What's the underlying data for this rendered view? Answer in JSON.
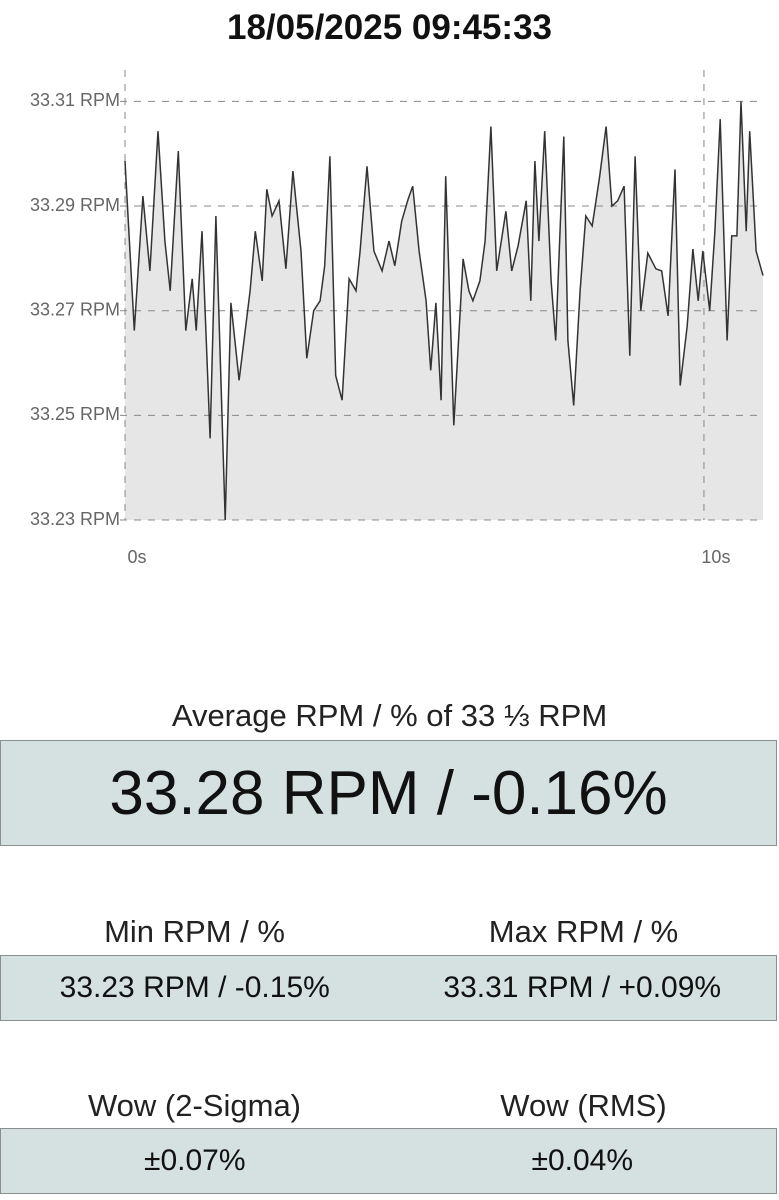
{
  "title": "18/05/2025 09:45:33",
  "chart_data": {
    "type": "area",
    "color": "#333333",
    "fill": "#e6e6e6",
    "grid": true,
    "x": [
      0,
      0.16,
      0.31,
      0.43,
      0.57,
      0.69,
      0.78,
      0.92,
      1.05,
      1.16,
      1.23,
      1.33,
      1.47,
      1.57,
      1.73,
      1.83,
      1.97,
      2.16,
      2.25,
      2.37,
      2.45,
      2.54,
      2.66,
      2.78,
      2.9,
      3.04,
      3.14,
      3.26,
      3.37,
      3.45,
      3.54,
      3.64,
      3.75,
      3.87,
      3.99,
      4.06,
      4.18,
      4.3,
      4.44,
      4.56,
      4.66,
      4.78,
      4.89,
      4.97,
      5.08,
      5.2,
      5.28,
      5.37,
      5.46,
      5.54,
      5.68,
      5.84,
      5.94,
      6.01,
      6.13,
      6.22,
      6.32,
      6.42,
      6.58,
      6.68,
      6.79,
      6.93,
      7.01,
      7.08,
      7.15,
      7.25,
      7.36,
      7.44,
      7.58,
      7.65,
      7.75,
      7.86,
      7.96,
      8.07,
      8.2,
      8.31,
      8.41,
      8.51,
      8.62,
      8.72,
      8.81,
      8.91,
      9.03,
      9.17,
      9.27,
      9.38,
      9.5,
      9.59,
      9.71,
      9.81,
      9.9,
      9.98,
      10.1,
      10.19,
      10.28,
      10.4,
      10.48,
      10.57,
      10.64,
      10.73,
      10.79,
      10.9,
      11.02
    ],
    "values": [
      33.2986,
      33.2662,
      33.2919,
      33.2776,
      33.3043,
      33.2833,
      33.2738,
      33.3005,
      33.2662,
      33.2761,
      33.2662,
      33.2852,
      33.2456,
      33.2881,
      33.23,
      33.2715,
      33.2567,
      33.2738,
      33.2852,
      33.2757,
      33.2932,
      33.2881,
      33.291,
      33.278,
      33.2967,
      33.2814,
      33.2609,
      33.27,
      33.2719,
      33.2786,
      33.2995,
      33.2576,
      33.2529,
      33.2761,
      33.2738,
      33.2814,
      33.2976,
      33.2814,
      33.2776,
      33.2833,
      33.2786,
      33.2871,
      33.2913,
      33.2938,
      33.2814,
      33.2719,
      33.2586,
      33.2715,
      33.2529,
      33.2957,
      33.2481,
      33.2799,
      33.2738,
      33.2719,
      33.2757,
      33.2833,
      33.3052,
      33.2776,
      33.289,
      33.2776,
      33.2824,
      33.291,
      33.2719,
      33.2986,
      33.2833,
      33.3043,
      33.2757,
      33.2643,
      33.3033,
      33.2643,
      33.2519,
      33.2738,
      33.2881,
      33.2862,
      33.2957,
      33.3052,
      33.29,
      33.291,
      33.2938,
      33.2614,
      33.2995,
      33.27,
      33.281,
      33.278,
      33.2776,
      33.269,
      33.297,
      33.2557,
      33.2671,
      33.2818,
      33.2719,
      33.2814,
      33.27,
      33.2852,
      33.3066,
      33.2643,
      33.2843,
      33.2843,
      33.31,
      33.2852,
      33.3043,
      33.2814,
      33.2767
    ],
    "xlim": [
      0,
      11.02
    ],
    "xticks": [
      {
        "value": 0,
        "label": "0s"
      },
      {
        "value": 10,
        "label": "10s"
      }
    ],
    "ylim": [
      33.23,
      33.316
    ],
    "yticks": [
      {
        "value": 33.23,
        "label": "33.23 RPM"
      },
      {
        "value": 33.25,
        "label": "33.25 RPM"
      },
      {
        "value": 33.27,
        "label": "33.27 RPM"
      },
      {
        "value": 33.29,
        "label": "33.29 RPM"
      },
      {
        "value": 33.31,
        "label": "33.31 RPM"
      }
    ]
  },
  "stats": {
    "average": {
      "label": "Average RPM / % of 33 ⅓ RPM",
      "value": "33.28 RPM / -0.16%"
    },
    "min": {
      "label": "Min RPM / %",
      "value": "33.23 RPM / -0.15%"
    },
    "max": {
      "label": "Max RPM / %",
      "value": "33.31 RPM / +0.09%"
    },
    "wow_2sigma": {
      "label": "Wow (2-Sigma)",
      "value": "±0.07%"
    },
    "wow_rms": {
      "label": "Wow (RMS)",
      "value": "±0.04%"
    }
  }
}
